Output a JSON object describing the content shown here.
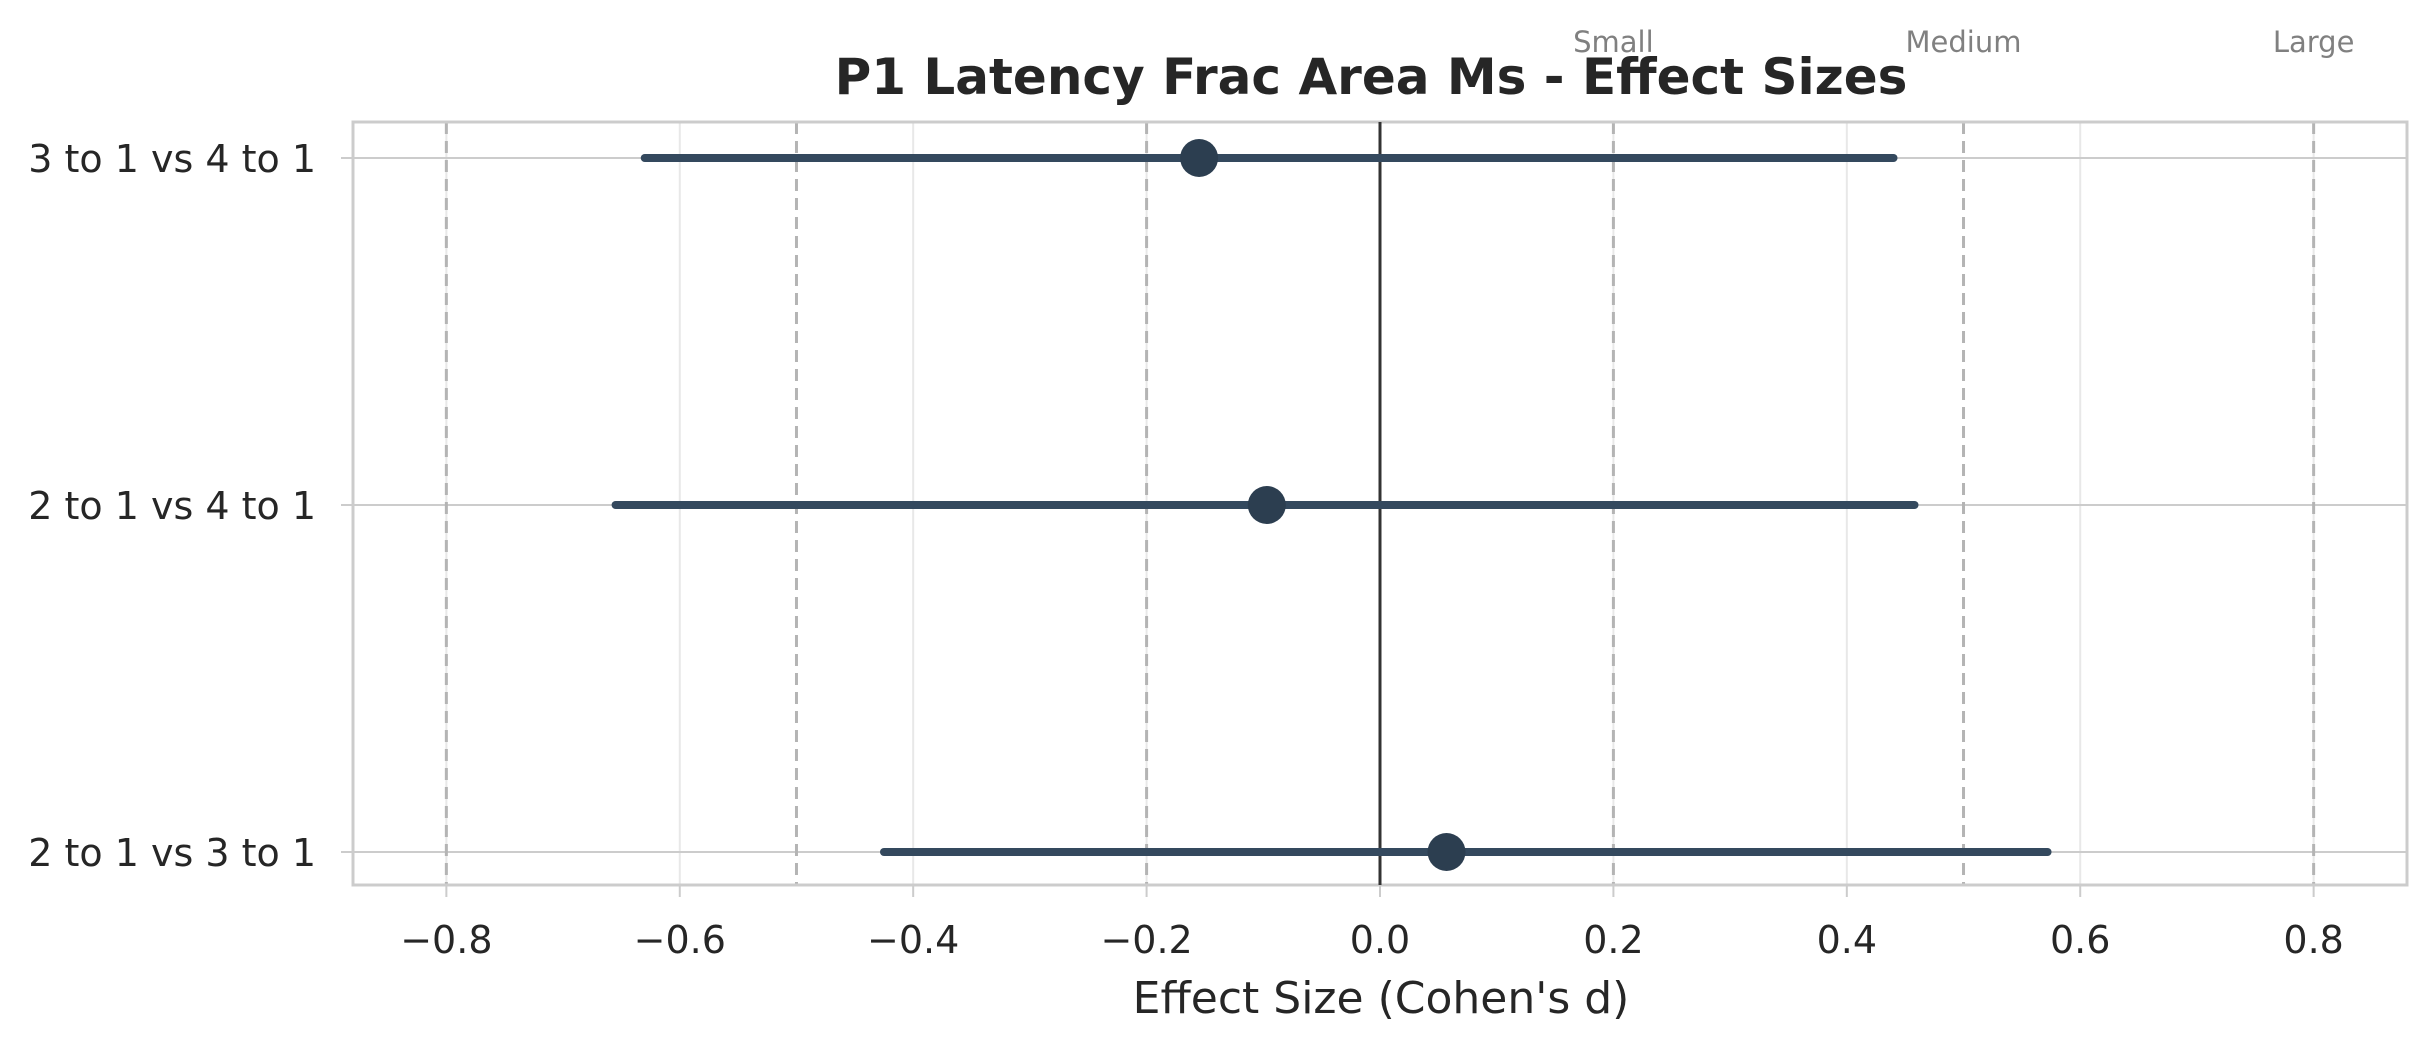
{
  "chart_data": {
    "type": "forest",
    "title": "P1 Latency Frac Area Ms - Effect Sizes",
    "xlabel": "Effect Size (Cohen's d)",
    "ylabel": "",
    "xlim": [
      -0.88,
      0.88
    ],
    "xticks": [
      -0.8,
      -0.6,
      -0.4,
      -0.2,
      0.0,
      0.2,
      0.4,
      0.6,
      0.8
    ],
    "xtick_labels": [
      "−0.8",
      "−0.6",
      "−0.4",
      "−0.2",
      "0.0",
      "0.2",
      "0.4",
      "0.6",
      "0.8"
    ],
    "grid": true,
    "zero_line": 0.0,
    "reference_lines": [
      {
        "value": -0.8,
        "label": ""
      },
      {
        "value": -0.5,
        "label": ""
      },
      {
        "value": -0.2,
        "label": ""
      },
      {
        "value": 0.2,
        "label": "Small"
      },
      {
        "value": 0.5,
        "label": "Medium"
      },
      {
        "value": 0.8,
        "label": "Large"
      }
    ],
    "comparisons": [
      {
        "label": "3 to 1 vs 4 to 1",
        "d": -0.155,
        "ci_low": -0.63,
        "ci_high": 0.44
      },
      {
        "label": "2 to 1 vs 4 to 1",
        "d": -0.097,
        "ci_low": -0.655,
        "ci_high": 0.458
      },
      {
        "label": "2 to 1 vs 3 to 1",
        "d": 0.057,
        "ci_low": -0.425,
        "ci_high": 0.572
      }
    ],
    "colors": {
      "interval": "#34495e",
      "point": "#2c3e50",
      "zero_line": "#333333",
      "reference": "#b4b4b4",
      "grid": "#e8e8e8",
      "frame": "#cccccc",
      "ref_label": "#808080",
      "text": "#262626"
    }
  }
}
